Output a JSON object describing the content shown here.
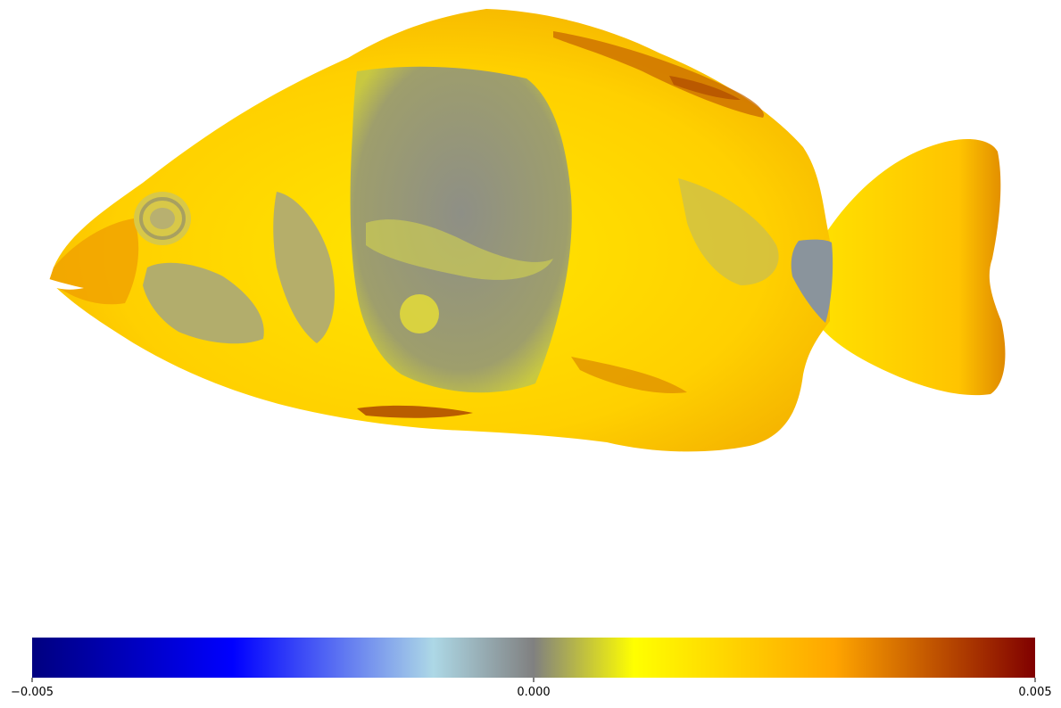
{
  "chart_data": {
    "type": "heatmap",
    "title": "",
    "xlabel": "",
    "ylabel": "",
    "subject": "fish",
    "axes_visible": false,
    "colorbar": {
      "orientation": "horizontal",
      "placement": "bottom",
      "range": [
        -0.005,
        0.005
      ],
      "ticks": [
        -0.005,
        0.0,
        0.005
      ],
      "tick_labels": [
        "−0.005",
        "0.000",
        "0.005"
      ],
      "colormap_stops": [
        {
          "value": -0.005,
          "color": "#000080"
        },
        {
          "value": -0.003,
          "color": "#0000ff"
        },
        {
          "value": -0.001,
          "color": "#add8e6"
        },
        {
          "value": 0.0,
          "color": "#808080"
        },
        {
          "value": 0.001,
          "color": "#ffff00"
        },
        {
          "value": 0.003,
          "color": "#ffa500"
        },
        {
          "value": 0.005,
          "color": "#800000"
        }
      ]
    },
    "value_regions": [
      {
        "region": "body",
        "value": 0.0015,
        "color": "#ffd400"
      },
      {
        "region": "dark-shoulder-band",
        "value": 0.0004,
        "color": "#9a9a6a"
      },
      {
        "region": "head-patch",
        "value": 0.0006,
        "color": "#a9a978"
      },
      {
        "region": "tail-base-spot",
        "value": 0.0,
        "color": "#8a949c"
      },
      {
        "region": "dorsal-fin-edge",
        "value": 0.004,
        "color": "#b85a00"
      },
      {
        "region": "belly-stripe",
        "value": 0.004,
        "color": "#a84000"
      },
      {
        "region": "tail-edge",
        "value": 0.0035,
        "color": "#d07000"
      }
    ]
  }
}
